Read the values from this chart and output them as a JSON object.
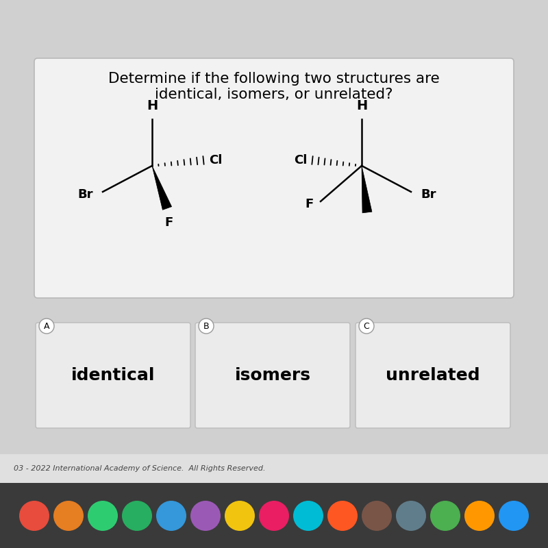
{
  "title_line1": "Determine if the following two structures are",
  "title_line2": "identical, isomers, or unrelated?",
  "bg_color": "#d0d0d0",
  "top_panel_bg": "#f2f2f2",
  "box_bg": "#ebebeb",
  "box_border": "#c0c0c0",
  "answer_labels": [
    "A",
    "B",
    "C"
  ],
  "answer_texts": [
    "identical",
    "isomers",
    "unrelated"
  ],
  "footer_text": "03 - 2022 International Academy of Science.  All Rights Reserved.",
  "dock_color": "#3a3a3a",
  "title_fontsize": 15.5,
  "answer_fontsize": 18,
  "label_fontsize": 9
}
